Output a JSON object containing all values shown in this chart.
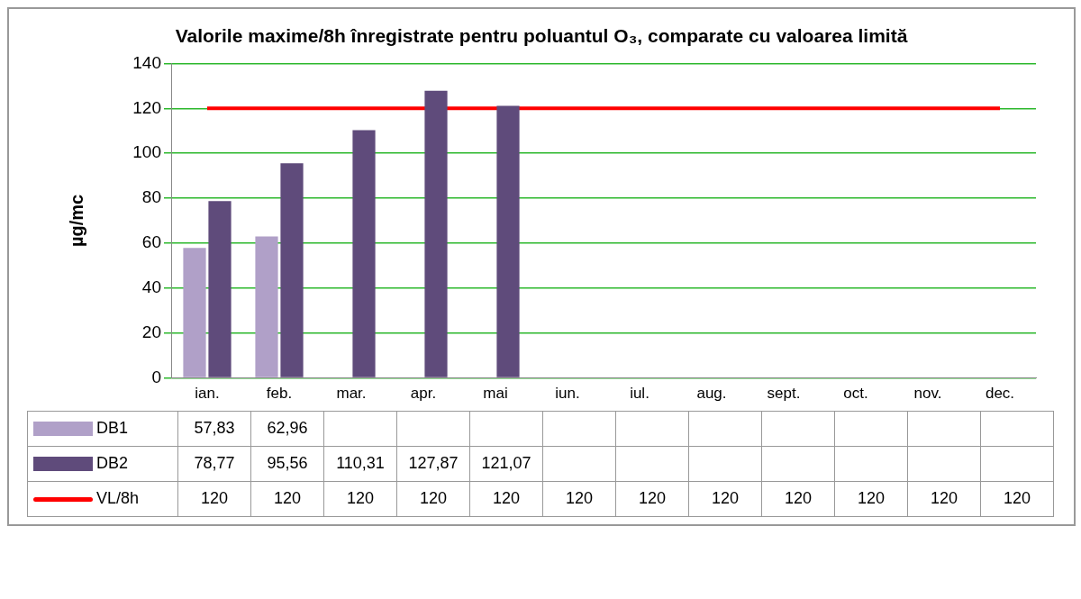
{
  "chart_data": {
    "type": "bar",
    "title": "Valorile maxime/8h înregistrate pentru poluantul O₃, comparate cu valoarea limită",
    "ylabel": "µg/mc",
    "categories": [
      "ian.",
      "feb.",
      "mar.",
      "apr.",
      "mai",
      "iun.",
      "iul.",
      "aug.",
      "sept.",
      "oct.",
      "nov.",
      "dec."
    ],
    "series": [
      {
        "name": "DB1",
        "color": "#b0a0c8",
        "values": [
          57.83,
          62.96,
          null,
          null,
          null,
          null,
          null,
          null,
          null,
          null,
          null,
          null
        ],
        "value_labels": [
          "57,83",
          "62,96",
          null,
          null,
          null,
          null,
          null,
          null,
          null,
          null,
          null,
          null
        ]
      },
      {
        "name": "DB2",
        "color": "#5f4b7b",
        "values": [
          78.77,
          95.56,
          110.31,
          127.87,
          121.07,
          null,
          null,
          null,
          null,
          null,
          null,
          null
        ],
        "value_labels": [
          "78,77",
          "95,56",
          "110,31",
          "127,87",
          "121,07",
          null,
          null,
          null,
          null,
          null,
          null,
          null
        ]
      },
      {
        "name": "VL/8h",
        "type": "line",
        "color": "#ff0000",
        "values": [
          120,
          120,
          120,
          120,
          120,
          120,
          120,
          120,
          120,
          120,
          120,
          120
        ],
        "value_labels": [
          "120",
          "120",
          "120",
          "120",
          "120",
          "120",
          "120",
          "120",
          "120",
          "120",
          "120",
          "120"
        ]
      }
    ],
    "ylim": [
      0,
      140
    ],
    "yticks": [
      0,
      20,
      40,
      60,
      80,
      100,
      120,
      140
    ],
    "grid": "y",
    "legend": "bottom",
    "marker": "none"
  }
}
